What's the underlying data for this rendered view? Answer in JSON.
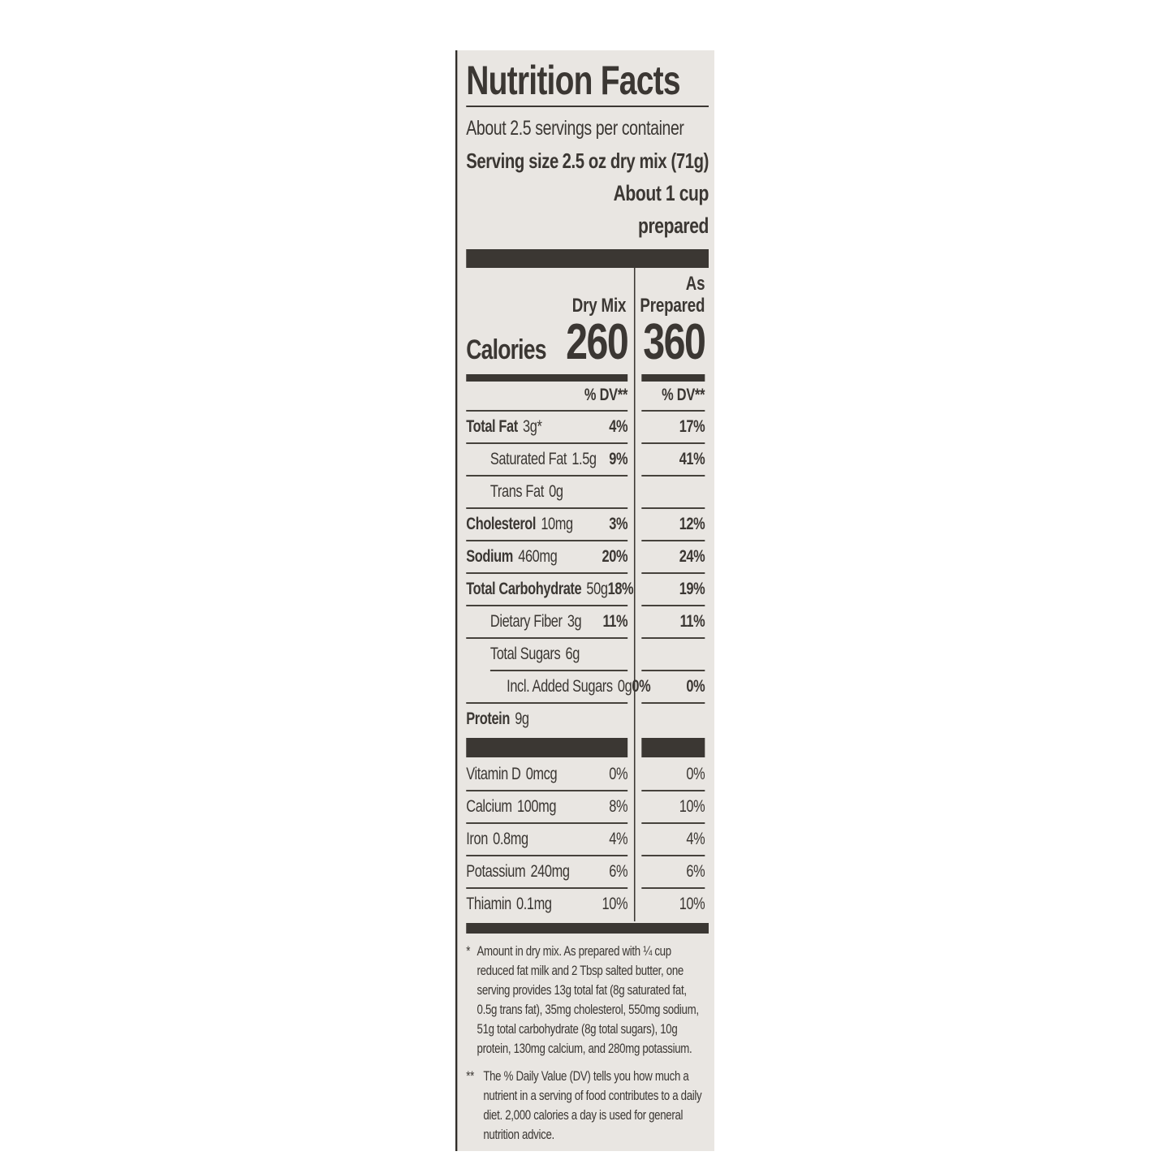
{
  "label": {
    "title": "Nutrition Facts",
    "servings_per_container": "About 2.5 servings per container",
    "serving_size_label": "Serving size",
    "serving_size_value": "2.5 oz dry mix (71g)",
    "serving_size_line2": "About 1 cup",
    "serving_size_line3": "prepared",
    "columns": {
      "col1": "Dry Mix",
      "col2_line1": "As",
      "col2_line2": "Prepared"
    },
    "calories": {
      "label": "Calories",
      "dry_mix": "260",
      "as_prepared": "360"
    },
    "dv_header": "% DV**",
    "nutrients": [
      {
        "label": "Total Fat",
        "amount": "3g*",
        "bold": true,
        "indent": 0,
        "dv1": "4%",
        "dv2": "17%",
        "dv_bold": true,
        "rule": "full"
      },
      {
        "label": "Saturated Fat",
        "amount": "1.5g",
        "bold": false,
        "indent": 1,
        "dv1": "9%",
        "dv2": "41%",
        "dv_bold": true,
        "rule": "full"
      },
      {
        "label": "Trans Fat",
        "amount": "0g",
        "bold": false,
        "indent": 1,
        "dv1": "",
        "dv2": "",
        "dv_bold": false,
        "rule": "full"
      },
      {
        "label": "Cholesterol",
        "amount": "10mg",
        "bold": true,
        "indent": 0,
        "dv1": "3%",
        "dv2": "12%",
        "dv_bold": true,
        "rule": "full"
      },
      {
        "label": "Sodium",
        "amount": "460mg",
        "bold": true,
        "indent": 0,
        "dv1": "20%",
        "dv2": "24%",
        "dv_bold": true,
        "rule": "full"
      },
      {
        "label": "Total Carbohydrate",
        "amount": "50g",
        "bold": true,
        "indent": 0,
        "dv1": "18%",
        "dv2": "19%",
        "dv_bold": true,
        "rule": "full"
      },
      {
        "label": "Dietary Fiber",
        "amount": "3g",
        "bold": false,
        "indent": 1,
        "dv1": "11%",
        "dv2": "11%",
        "dv_bold": true,
        "rule": "full"
      },
      {
        "label": "Total Sugars",
        "amount": "6g",
        "bold": false,
        "indent": 1,
        "dv1": "",
        "dv2": "",
        "dv_bold": false,
        "rule": "indent"
      },
      {
        "label": "Incl. Added Sugars",
        "amount": "0g",
        "bold": false,
        "indent": 2,
        "dv1": "0%",
        "dv2": "0%",
        "dv_bold": true,
        "rule": "full"
      },
      {
        "label": "Protein",
        "amount": "9g",
        "bold": true,
        "indent": 0,
        "dv1": "",
        "dv2": "",
        "dv_bold": false,
        "rule": "none"
      }
    ],
    "vitamins": [
      {
        "label": "Vitamin D",
        "amount": "0mcg",
        "bold": false,
        "indent": 0,
        "dv1": "0%",
        "dv2": "0%",
        "dv_bold": false,
        "rule": "full"
      },
      {
        "label": "Calcium",
        "amount": "100mg",
        "bold": false,
        "indent": 0,
        "dv1": "8%",
        "dv2": "10%",
        "dv_bold": false,
        "rule": "full"
      },
      {
        "label": "Iron",
        "amount": "0.8mg",
        "bold": false,
        "indent": 0,
        "dv1": "4%",
        "dv2": "4%",
        "dv_bold": false,
        "rule": "full"
      },
      {
        "label": "Potassium",
        "amount": "240mg",
        "bold": false,
        "indent": 0,
        "dv1": "6%",
        "dv2": "6%",
        "dv_bold": false,
        "rule": "full"
      },
      {
        "label": "Thiamin",
        "amount": "0.1mg",
        "bold": false,
        "indent": 0,
        "dv1": "10%",
        "dv2": "10%",
        "dv_bold": false,
        "rule": "none"
      }
    ],
    "footnotes": [
      {
        "marker": "*",
        "text": "Amount in dry mix. As prepared with ¼ cup reduced fat milk and 2 Tbsp salted butter, one serving provides 13g total fat (8g saturated fat, 0.5g trans fat), 35mg cholesterol, 550mg sodium, 51g total carbohydrate (8g total sugars), 10g protein, 130mg calcium, and 280mg potassium."
      },
      {
        "marker": "**",
        "text": "The % Daily Value (DV) tells you how much a nutrient in a serving of food contributes to a daily diet. 2,000 calories a day is used for general nutrition advice."
      }
    ],
    "colors": {
      "ink": "#3b3733",
      "label_bg": "#e9e6e2",
      "page_bg": "#ffffff"
    }
  }
}
